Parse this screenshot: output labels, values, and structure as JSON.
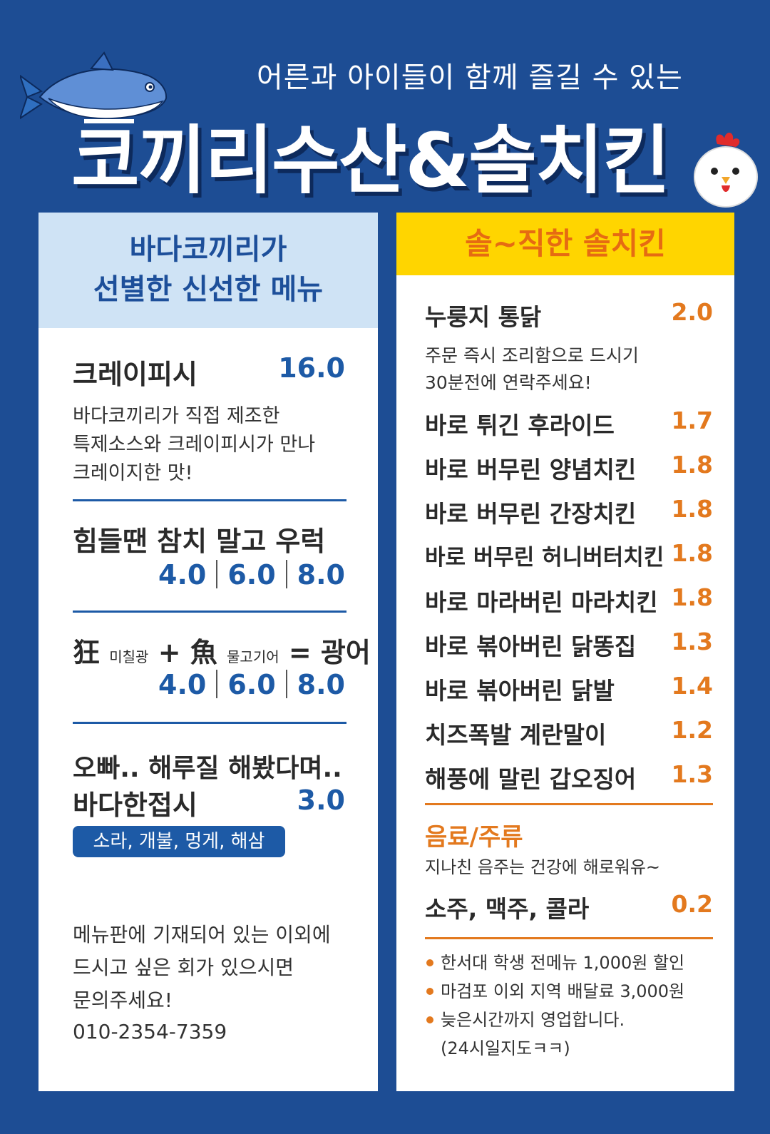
{
  "header": {
    "tagline": "어른과 아이들이 함께 즐길 수 있는",
    "title": "코끼리수산&솔치킨",
    "logo_icon": "tuna-fish-icon",
    "mascot_icon": "chicken-icon"
  },
  "left_panel": {
    "header_line1": "바다코끼리가",
    "header_line2": "선별한 신선한 메뉴",
    "item1": {
      "name": "크레이피시",
      "price": "16.0",
      "desc_line1": "바다코끼리가 직접 제조한",
      "desc_line2": "특제소스와 크레이피시가 만나",
      "desc_line3": "크레이지한 맛!"
    },
    "item2": {
      "name": "힘들땐 참치 말고 우럭",
      "prices": [
        "4.0",
        "6.0",
        "8.0"
      ]
    },
    "item3": {
      "name_char1": "狂",
      "name_note1": "미칠광",
      "plus": "+",
      "name_char2": "魚",
      "name_note2": "물고기어",
      "equals": "= 광어",
      "prices": [
        "4.0",
        "6.0",
        "8.0"
      ]
    },
    "item4": {
      "name_line1": "오빠.. 해루질 해봤다며..",
      "name_line2": "바다한접시",
      "price": "3.0",
      "badge": "소라, 개불, 멍게, 해삼"
    },
    "note_line1": "메뉴판에 기재되어 있는 이외에",
    "note_line2": "드시고 싶은 회가 있으시면",
    "note_line3": "문의주세요!",
    "phone": "010-2354-7359"
  },
  "right_panel": {
    "header": "솔~직한 솔치킨",
    "first_item": {
      "name": "누룽지 통닭",
      "price": "2.0"
    },
    "first_desc_line1": "주문 즉시 조리함으로 드시기",
    "first_desc_line2": "30분전에 연락주세요!",
    "items": [
      {
        "name": "바로 튀긴 후라이드",
        "price": "1.7"
      },
      {
        "name": "바로 버무린 양념치킨",
        "price": "1.8"
      },
      {
        "name": "바로 버무린 간장치킨",
        "price": "1.8"
      },
      {
        "name": "바로 버무린 허니버터치킨",
        "price": "1.8"
      },
      {
        "name": "바로 마라버린 마라치킨",
        "price": "1.8"
      },
      {
        "name": "바로 볶아버린 닭똥집",
        "price": "1.3"
      },
      {
        "name": "바로 볶아버린 닭발",
        "price": "1.4"
      },
      {
        "name": "치즈폭발 계란말이",
        "price": "1.2"
      },
      {
        "name": "해풍에 말린 갑오징어",
        "price": "1.3"
      }
    ],
    "drinks_title": "음료/주류",
    "drinks_sub": "지나친 음주는 건강에 해로워유~",
    "drinks_item": {
      "name": "소주, 맥주, 콜라",
      "price": "0.2"
    },
    "notes": [
      "한서대 학생 전메뉴 1,000원 할인",
      "마검포 이외 지역 배달료 3,000원",
      "늦은시간까지 영업합니다."
    ],
    "note_cont": "(24시일지도ㅋㅋ)"
  },
  "colors": {
    "background": "#1d4d94",
    "left_accent": "#1d5aa6",
    "left_header_bg": "#cfe3f5",
    "right_header_bg": "#ffd500",
    "right_accent": "#e3791e"
  }
}
